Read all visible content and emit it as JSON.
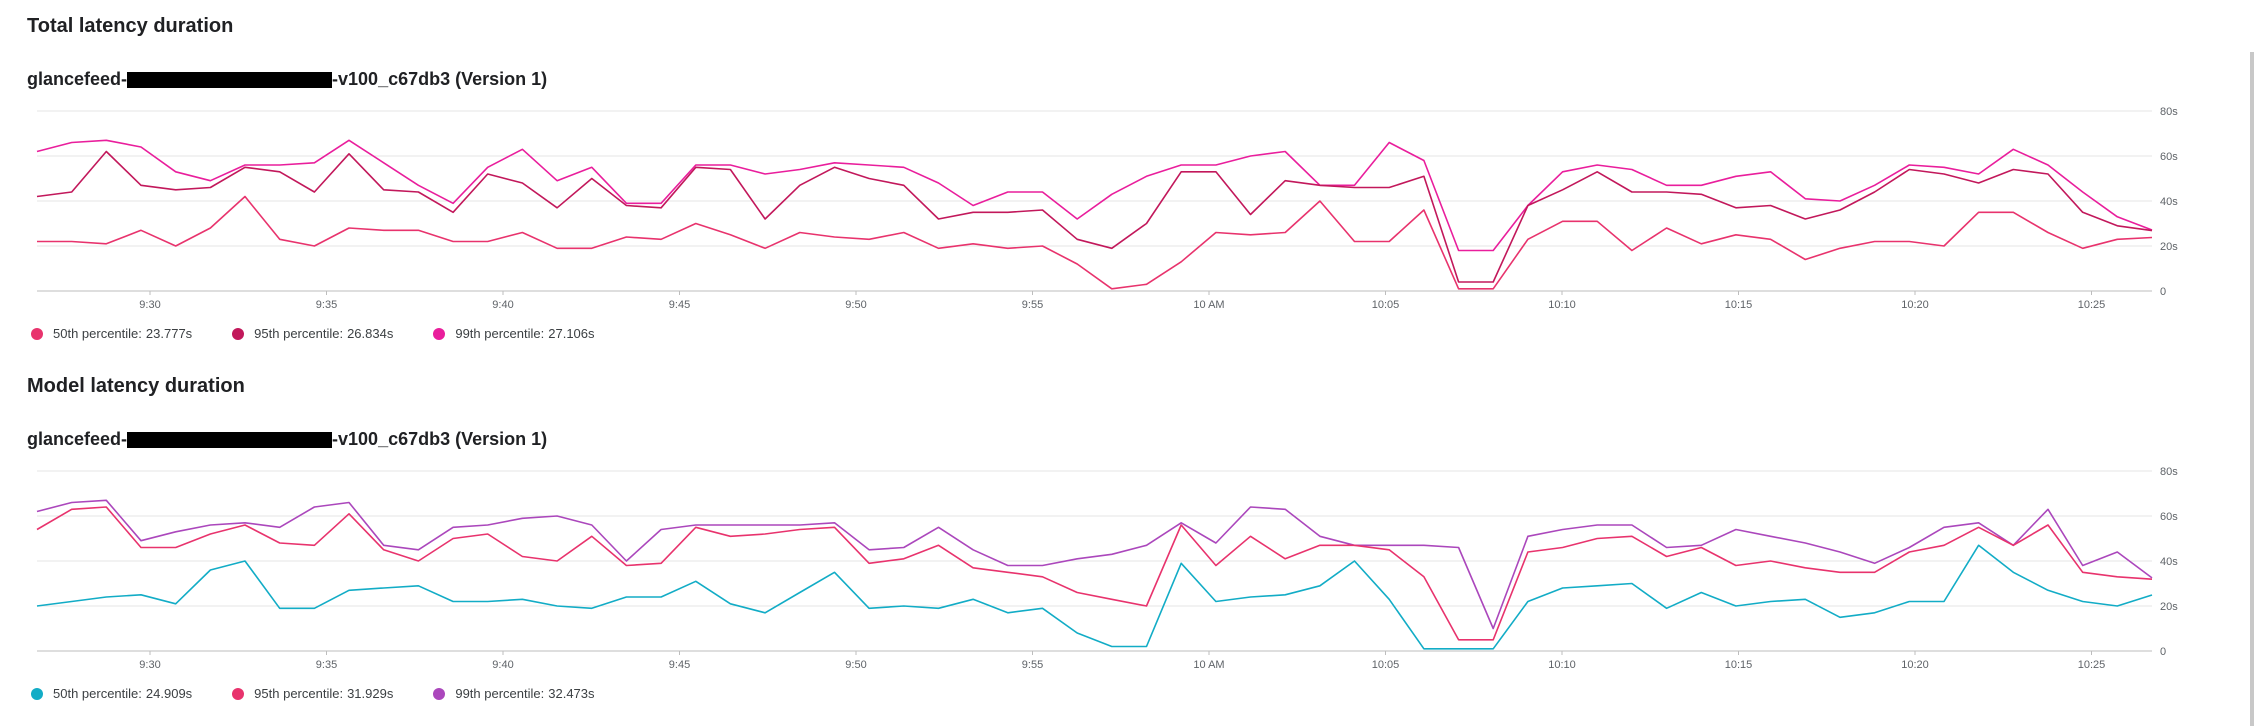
{
  "sections": [
    {
      "title": "Total latency duration",
      "subtitle_prefix": "glancefeed-",
      "subtitle_suffix": "-v100_c67db3 (Version 1)"
    },
    {
      "title": "Model latency duration",
      "subtitle_prefix": "glancefeed-",
      "subtitle_suffix": "-v100_c67db3 (Version 1)"
    }
  ],
  "chart_data": [
    {
      "type": "line",
      "title": "Total latency duration",
      "subtitle": "glancefeed-[redacted]-v100_c67db3 (Version 1)",
      "x_tick_labels": [
        "9:30",
        "9:35",
        "9:40",
        "9:45",
        "9:50",
        "9:55",
        "10 AM",
        "10:05",
        "10:10",
        "10:15",
        "10:20",
        "10:25"
      ],
      "y_tick_labels": [
        "80s",
        "60s",
        "40s",
        "20s",
        "0"
      ],
      "ylim": [
        0,
        80
      ],
      "grid": true,
      "legend_position": "bottom-left",
      "series": [
        {
          "name": "50th percentile:",
          "current": "23.777s",
          "color": "#e8336d",
          "values": [
            22,
            22,
            21,
            27,
            20,
            28,
            42,
            23,
            20,
            28,
            27,
            27,
            22,
            22,
            26,
            19,
            19,
            24,
            23,
            30,
            25,
            19,
            26,
            24,
            23,
            26,
            19,
            21,
            19,
            20,
            12,
            1,
            3,
            13,
            26,
            25,
            26,
            40,
            22,
            22,
            36,
            1,
            1,
            23,
            31,
            31,
            18,
            28,
            21,
            25,
            23,
            14,
            19,
            22,
            22,
            20,
            35,
            35,
            26,
            19,
            23,
            23.777
          ]
        },
        {
          "name": "95th percentile:",
          "current": "26.834s",
          "color": "#c2185b",
          "values": [
            42,
            44,
            62,
            47,
            45,
            46,
            55,
            53,
            44,
            61,
            45,
            44,
            35,
            52,
            48,
            37,
            50,
            38,
            37,
            55,
            54,
            32,
            47,
            55,
            50,
            47,
            32,
            35,
            35,
            36,
            23,
            19,
            30,
            53,
            53,
            34,
            49,
            47,
            46,
            46,
            51,
            4,
            4,
            38,
            45,
            53,
            44,
            44,
            43,
            37,
            38,
            32,
            36,
            44,
            54,
            52,
            48,
            54,
            52,
            35,
            29,
            26.834
          ]
        },
        {
          "name": "99th percentile:",
          "current": "27.106s",
          "color": "#e91e9c",
          "values": [
            62,
            66,
            67,
            64,
            53,
            49,
            56,
            56,
            57,
            67,
            57,
            47,
            39,
            55,
            63,
            49,
            55,
            39,
            39,
            56,
            56,
            52,
            54,
            57,
            56,
            55,
            48,
            38,
            44,
            44,
            32,
            43,
            51,
            56,
            56,
            60,
            62,
            47,
            47,
            66,
            58,
            18,
            18,
            38,
            53,
            56,
            54,
            47,
            47,
            51,
            53,
            41,
            40,
            47,
            56,
            55,
            52,
            63,
            56,
            44,
            33,
            27.106
          ]
        }
      ]
    },
    {
      "type": "line",
      "title": "Model latency duration",
      "subtitle": "glancefeed-[redacted]-v100_c67db3 (Version 1)",
      "x_tick_labels": [
        "9:30",
        "9:35",
        "9:40",
        "9:45",
        "9:50",
        "9:55",
        "10 AM",
        "10:05",
        "10:10",
        "10:15",
        "10:20",
        "10:25"
      ],
      "y_tick_labels": [
        "80s",
        "60s",
        "40s",
        "20s",
        "0"
      ],
      "ylim": [
        0,
        80
      ],
      "grid": true,
      "legend_position": "bottom-left",
      "series": [
        {
          "name": "50th percentile:",
          "current": "24.909s",
          "color": "#12acc6",
          "values": [
            20,
            22,
            24,
            25,
            21,
            36,
            40,
            19,
            19,
            27,
            28,
            29,
            22,
            22,
            23,
            20,
            19,
            24,
            24,
            31,
            21,
            17,
            26,
            35,
            19,
            20,
            19,
            23,
            17,
            19,
            8,
            2,
            2,
            39,
            22,
            24,
            25,
            29,
            40,
            23,
            1,
            1,
            1,
            22,
            28,
            29,
            30,
            19,
            26,
            20,
            22,
            23,
            15,
            17,
            22,
            22,
            47,
            35,
            27,
            22,
            20,
            24.909
          ]
        },
        {
          "name": "95th percentile:",
          "current": "31.929s",
          "color": "#e8336d",
          "values": [
            54,
            63,
            64,
            46,
            46,
            52,
            56,
            48,
            47,
            61,
            45,
            40,
            50,
            52,
            42,
            40,
            51,
            38,
            39,
            55,
            51,
            52,
            54,
            55,
            39,
            41,
            47,
            37,
            35,
            33,
            26,
            23,
            20,
            56,
            38,
            51,
            41,
            47,
            47,
            45,
            33,
            5,
            5,
            44,
            46,
            50,
            51,
            42,
            46,
            38,
            40,
            37,
            35,
            35,
            44,
            47,
            55,
            47,
            56,
            35,
            33,
            31.929
          ]
        },
        {
          "name": "99th percentile:",
          "current": "32.473s",
          "color": "#ab47bc",
          "values": [
            62,
            66,
            67,
            49,
            53,
            56,
            57,
            55,
            64,
            66,
            47,
            45,
            55,
            56,
            59,
            60,
            56,
            40,
            54,
            56,
            56,
            56,
            56,
            57,
            45,
            46,
            55,
            45,
            38,
            38,
            41,
            43,
            47,
            57,
            48,
            64,
            63,
            51,
            47,
            47,
            47,
            46,
            10,
            51,
            54,
            56,
            56,
            46,
            47,
            54,
            51,
            48,
            44,
            39,
            46,
            55,
            57,
            47,
            63,
            38,
            44,
            32.473
          ]
        }
      ]
    }
  ]
}
